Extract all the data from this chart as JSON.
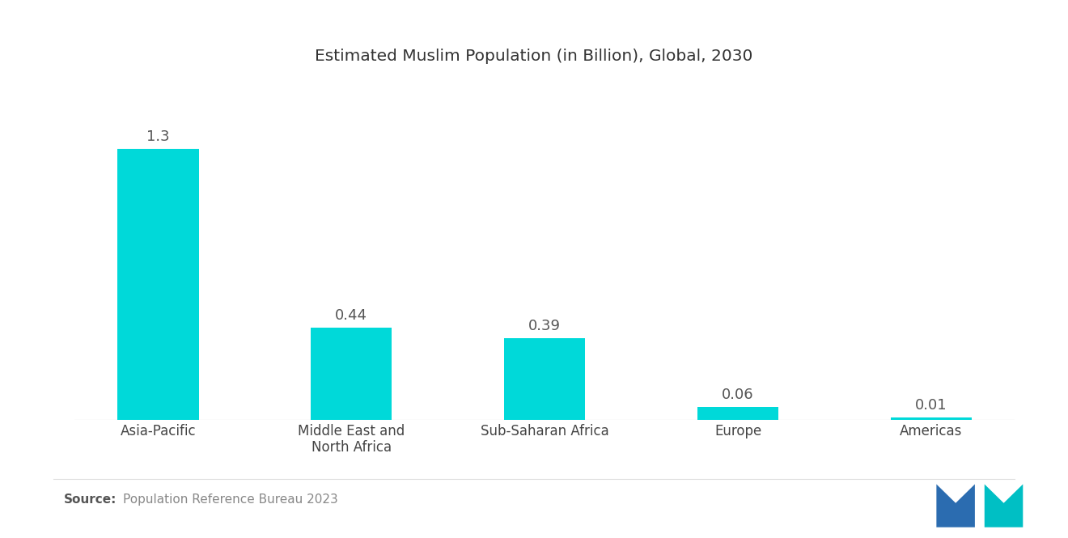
{
  "title": "Estimated Muslim Population (in Billion), Global, 2030",
  "categories": [
    "Asia-Pacific",
    "Middle East and\nNorth Africa",
    "Sub-Saharan Africa",
    "Europe",
    "Americas"
  ],
  "values": [
    1.3,
    0.44,
    0.39,
    0.06,
    0.01
  ],
  "bar_color": "#00D9D9",
  "background_color": "#ffffff",
  "title_fontsize": 14.5,
  "label_fontsize": 12,
  "value_fontsize": 13,
  "source_bold": "Source:",
  "source_text": "  Population Reference Bureau 2023",
  "source_fontsize": 11,
  "ylim": [
    0,
    1.55
  ],
  "bar_width": 0.42,
  "blue_color": "#2B6CB0",
  "teal_color": "#00BFC4"
}
